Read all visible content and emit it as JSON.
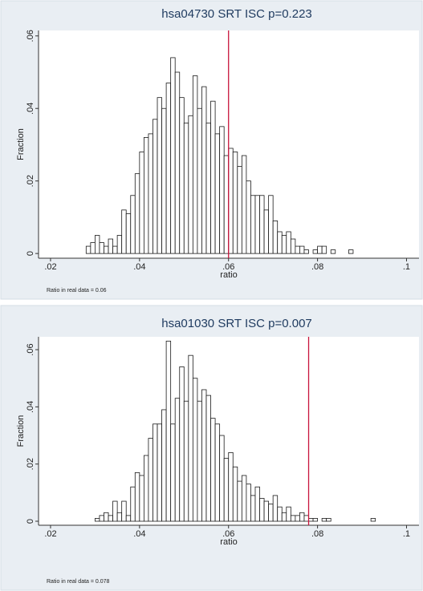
{
  "chart_data": [
    {
      "type": "histogram",
      "title": "hsa04730 SRT ISC p=0.223",
      "x_label": "ratio",
      "y_label": "Fraction",
      "note": "Ratio in real data = 0.06",
      "reference_line": 0.06,
      "bins": [
        0.028,
        0.029,
        0.03,
        0.031,
        0.032,
        0.033,
        0.034,
        0.035,
        0.036,
        0.037,
        0.038,
        0.039,
        0.04,
        0.041,
        0.042,
        0.043,
        0.044,
        0.045,
        0.046,
        0.047,
        0.048,
        0.049,
        0.05,
        0.051,
        0.052,
        0.053,
        0.054,
        0.055,
        0.056,
        0.057,
        0.058,
        0.059,
        0.06,
        0.061,
        0.062,
        0.063,
        0.064,
        0.065,
        0.066,
        0.067,
        0.068,
        0.069,
        0.07,
        0.071,
        0.072,
        0.073,
        0.074,
        0.075,
        0.076,
        0.077,
        0.078,
        0.079,
        0.08,
        0.081,
        0.082,
        0.083,
        0.084,
        0.085,
        0.086,
        0.087,
        0.088,
        0.089
      ],
      "values": [
        0.002,
        0.003,
        0.005,
        0.003,
        0.002,
        0.004,
        0.002,
        0.005,
        0.012,
        0.011,
        0.016,
        0.022,
        0.028,
        0.032,
        0.033,
        0.037,
        0.043,
        0.04,
        0.047,
        0.054,
        0.05,
        0.043,
        0.036,
        0.038,
        0.049,
        0.04,
        0.046,
        0.036,
        0.042,
        0.033,
        0.035,
        0.027,
        0.029,
        0.028,
        0.024,
        0.027,
        0.02,
        0.016,
        0.016,
        0.016,
        0.012,
        0.016,
        0.009,
        0.006,
        0.005,
        0.006,
        0.004,
        0.002,
        0.002,
        0.001,
        0,
        0.001,
        0.002,
        0.002,
        0,
        0.001,
        0,
        0,
        0,
        0.001,
        0
      ],
      "bar_color": "#ffffff",
      "edge_color": "#1a1a1a",
      "reference_color": "#c8143c",
      "xlim": [
        0.0173,
        0.1028
      ],
      "ylim": [
        -0.0013,
        0.0615
      ],
      "xticks": [
        {
          "value": 0.02,
          "label": ".02"
        },
        {
          "value": 0.04,
          "label": ".04"
        },
        {
          "value": 0.06,
          "label": ".06"
        },
        {
          "value": 0.08,
          "label": ".08"
        },
        {
          "value": 0.1,
          "label": ".1"
        }
      ],
      "yticks": [
        0,
        {
          "value": 0.02,
          "label": ".02"
        },
        {
          "value": 0.04,
          "label": ".04"
        },
        {
          "value": 0.06,
          "label": ".06"
        }
      ]
    },
    {
      "type": "histogram",
      "title": "hsa01030 SRT ISC p=0.007",
      "x_label": "ratio",
      "y_label": "Fraction",
      "note": "Ratio in real data = 0.078",
      "reference_line": 0.078,
      "bins": [
        0.03,
        0.031,
        0.032,
        0.033,
        0.034,
        0.035,
        0.036,
        0.037,
        0.038,
        0.039,
        0.04,
        0.041,
        0.042,
        0.043,
        0.044,
        0.045,
        0.046,
        0.047,
        0.048,
        0.049,
        0.05,
        0.051,
        0.052,
        0.053,
        0.054,
        0.055,
        0.056,
        0.057,
        0.058,
        0.059,
        0.06,
        0.061,
        0.062,
        0.063,
        0.064,
        0.065,
        0.066,
        0.067,
        0.068,
        0.069,
        0.07,
        0.071,
        0.072,
        0.073,
        0.074,
        0.075,
        0.076,
        0.077,
        0.078,
        0.079,
        0.08,
        0.081,
        0.082,
        0.083,
        0.084,
        0.085,
        0.086,
        0.087,
        0.088,
        0.089,
        0.09,
        0.091,
        0.092,
        0.093,
        0.094,
        0.095
      ],
      "values": [
        0.001,
        0.002,
        0.003,
        0.002,
        0.007,
        0.003,
        0.007,
        0.002,
        0.012,
        0.017,
        0.016,
        0.023,
        0.029,
        0.034,
        0.034,
        0.039,
        0.063,
        0.034,
        0.043,
        0.054,
        0.042,
        0.058,
        0.05,
        0.042,
        0.046,
        0.044,
        0.036,
        0.034,
        0.03,
        0.022,
        0.024,
        0.019,
        0.014,
        0.016,
        0.013,
        0.009,
        0.012,
        0.008,
        0.007,
        0.006,
        0.009,
        0.005,
        0.003,
        0.005,
        0.002,
        0.002,
        0.003,
        0.002,
        0.001,
        0.001,
        0,
        0.001,
        0.001,
        0,
        0,
        0,
        0,
        0,
        0,
        0,
        0,
        0,
        0.001,
        0,
        0
      ],
      "bar_color": "#ffffff",
      "edge_color": "#1a1a1a",
      "reference_color": "#c8143c",
      "xlim": [
        0.0173,
        0.1028
      ],
      "ylim": [
        -0.0014,
        0.0645
      ],
      "xticks": [
        {
          "value": 0.02,
          "label": ".02"
        },
        {
          "value": 0.04,
          "label": ".04"
        },
        {
          "value": 0.06,
          "label": ".06"
        },
        {
          "value": 0.08,
          "label": ".08"
        },
        {
          "value": 0.1,
          "label": ".1"
        }
      ],
      "yticks": [
        0,
        {
          "value": 0.02,
          "label": ".02"
        },
        {
          "value": 0.04,
          "label": ".04"
        },
        {
          "value": 0.06,
          "label": ".06"
        }
      ]
    }
  ]
}
